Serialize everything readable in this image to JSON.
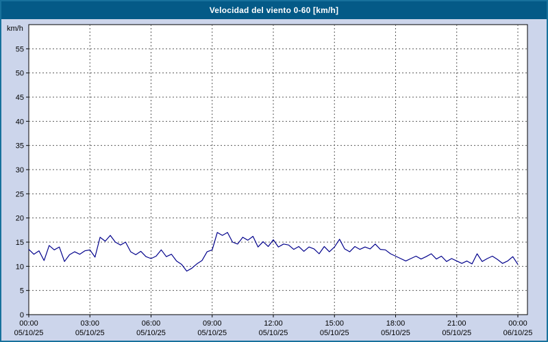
{
  "title": "Velocidad del viento 0-60 [km/h]",
  "colors": {
    "title_bar": "#045a87",
    "title_text": "#ffffff",
    "background": "#ccd5eb",
    "frame_border": "#17719c",
    "plot_background": "#ffffff",
    "plot_border": "#000000",
    "gridline": "#555555",
    "line": "#00008b"
  },
  "chart_data": {
    "type": "line",
    "title": "Velocidad del viento 0-60 [km/h]",
    "ylabel": "km/h",
    "xlabel": "",
    "ylim": [
      0,
      60
    ],
    "y_ticks": [
      0,
      5,
      10,
      15,
      20,
      25,
      30,
      35,
      40,
      45,
      50,
      55
    ],
    "grid": "dashed",
    "legend": "none",
    "x_hours": {
      "start": 0,
      "end": 24,
      "step": 0.25
    },
    "x_ticks": [
      {
        "hour": 0,
        "time": "00:00",
        "date": "05/10/25"
      },
      {
        "hour": 3,
        "time": "03:00",
        "date": "05/10/25"
      },
      {
        "hour": 6,
        "time": "06:00",
        "date": "05/10/25"
      },
      {
        "hour": 9,
        "time": "09:00",
        "date": "05/10/25"
      },
      {
        "hour": 12,
        "time": "12:00",
        "date": "05/10/25"
      },
      {
        "hour": 15,
        "time": "15:00",
        "date": "05/10/25"
      },
      {
        "hour": 18,
        "time": "18:00",
        "date": "05/10/25"
      },
      {
        "hour": 21,
        "time": "21:00",
        "date": "05/10/25"
      },
      {
        "hour": 24,
        "time": "00:00",
        "date": "06/10/25"
      }
    ],
    "series": [
      {
        "name": "Velocidad del viento",
        "color": "#00008b",
        "values": [
          13.5,
          12.5,
          13.2,
          11.2,
          14.3,
          13.4,
          14.0,
          11.0,
          12.4,
          13.0,
          12.5,
          13.2,
          13.4,
          11.9,
          16.0,
          15.2,
          16.4,
          15.0,
          14.4,
          15.0,
          13.0,
          12.4,
          13.1,
          12.0,
          11.6,
          12.1,
          13.4,
          12.0,
          12.5,
          11.1,
          10.4,
          9.0,
          9.6,
          10.5,
          11.2,
          13.0,
          13.4,
          17.0,
          16.4,
          17.0,
          15.0,
          14.6,
          16.0,
          15.4,
          16.2,
          14.0,
          15.1,
          14.1,
          15.5,
          14.0,
          14.6,
          14.4,
          13.5,
          14.1,
          13.1,
          14.0,
          13.6,
          12.6,
          14.1,
          13.0,
          14.0,
          15.6,
          13.6,
          13.0,
          14.1,
          13.5,
          14.0,
          13.6,
          14.6,
          13.5,
          13.4,
          12.6,
          12.1,
          11.6,
          11.1,
          11.6,
          12.1,
          11.5,
          12.0,
          12.6,
          11.5,
          12.1,
          11.0,
          11.6,
          11.1,
          10.6,
          11.1,
          10.5,
          12.6,
          11.0,
          11.6,
          12.1,
          11.4,
          10.6,
          11.1,
          12.0,
          10.4
        ]
      }
    ]
  }
}
